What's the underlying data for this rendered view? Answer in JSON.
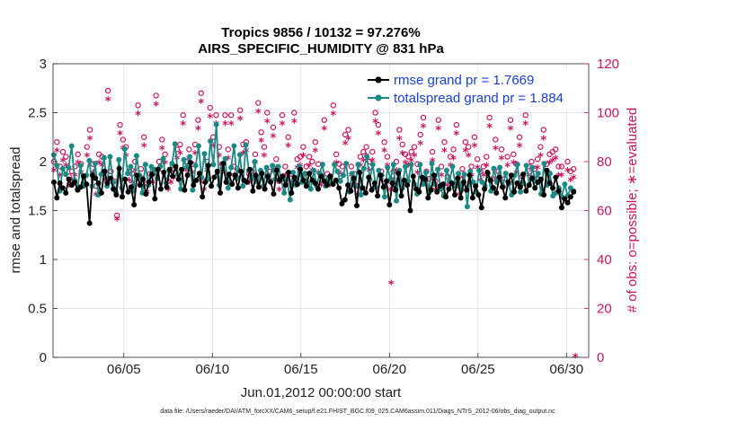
{
  "chart_data": {
    "type": "line",
    "title_line1": "Tropics 9856 / 10132 = 97.276%",
    "title_line2": "AIRS_SPECIFIC_HUMIDITY @ 831 hPa",
    "ylabel_left": "rmse and totalspread",
    "ylabel_right": "# of obs: o=possible; ∗=evaluated",
    "xlabel": "Jun.01,2012 00:00:00 start",
    "footer": "data file: /Users/raeder/DAI/ATM_forcXX/CAM6_setup/f.e21.FHIST_BGC.f09_025.CAM6assim.011/Diags_NTrS_2012-06/obs_diag_output.nc",
    "x_range_days": [
      1,
      30.5
    ],
    "ylim_left": [
      0,
      3
    ],
    "ylim_right": [
      0,
      120
    ],
    "yticks_left": [
      "0",
      "0.5",
      "1",
      "1.5",
      "2",
      "2.5",
      "3"
    ],
    "yticks_right": [
      "0",
      "20",
      "40",
      "60",
      "80",
      "100",
      "120"
    ],
    "xticks": [
      {
        "day": 5,
        "label": "06/05"
      },
      {
        "day": 10,
        "label": "06/10"
      },
      {
        "day": 15,
        "label": "06/15"
      },
      {
        "day": 20,
        "label": "06/20"
      },
      {
        "day": 25,
        "label": "06/25"
      },
      {
        "day": 30,
        "label": "06/30"
      }
    ],
    "grid": true,
    "legend_position": "top-right",
    "series": [
      {
        "name": "rmse grand pr = 1.7669",
        "axis": "left",
        "color": "#000000",
        "marker": "dot",
        "values": [
          1.79,
          1.63,
          1.78,
          1.73,
          1.68,
          1.82,
          1.76,
          1.79,
          1.71,
          1.74,
          1.85,
          1.77,
          1.37,
          1.86,
          1.83,
          1.78,
          1.68,
          1.9,
          1.78,
          1.83,
          1.72,
          1.66,
          1.93,
          1.64,
          1.82,
          1.69,
          1.74,
          1.56,
          1.86,
          1.76,
          1.82,
          1.67,
          1.79,
          1.87,
          1.62,
          1.92,
          1.72,
          1.89,
          1.74,
          1.92,
          1.85,
          1.95,
          1.82,
          1.92,
          1.71,
          1.86,
          1.99,
          1.76,
          1.81,
          1.88,
          1.64,
          1.79,
          1.96,
          1.75,
          1.84,
          1.9,
          1.68,
          1.98,
          1.79,
          1.87,
          1.77,
          1.86,
          1.73,
          1.9,
          1.81,
          1.79,
          1.92,
          1.7,
          1.86,
          1.74,
          1.88,
          1.72,
          1.85,
          1.79,
          1.67,
          1.91,
          1.81,
          1.85,
          1.76,
          1.89,
          1.68,
          1.84,
          1.77,
          1.92,
          1.81,
          1.75,
          1.88,
          1.81,
          1.78,
          1.72,
          1.85,
          1.8,
          1.76,
          1.85,
          1.77,
          1.81,
          1.73,
          1.57,
          1.61,
          1.76,
          1.7,
          1.83,
          1.55,
          1.89,
          1.73,
          1.68,
          1.84,
          1.71,
          1.78,
          1.65,
          1.86,
          1.74,
          1.8,
          1.56,
          1.78,
          1.71,
          1.88,
          1.65,
          1.81,
          1.76,
          1.5,
          1.85,
          1.72,
          1.69,
          1.84,
          1.82,
          1.63,
          1.71,
          1.86,
          1.69,
          1.75,
          1.77,
          1.64,
          1.72,
          1.78,
          1.66,
          1.83,
          1.63,
          1.79,
          1.71,
          1.86,
          1.63,
          1.75,
          1.66,
          1.53,
          1.72,
          1.89,
          1.81,
          1.73,
          1.68,
          1.84,
          1.74,
          1.63,
          1.79,
          1.86,
          1.69,
          1.78,
          1.74,
          1.87,
          1.7,
          1.76,
          1.83,
          1.73,
          1.79,
          1.82,
          1.66,
          1.91,
          1.78,
          1.73,
          1.84,
          1.7,
          1.53,
          1.62,
          1.58,
          1.64,
          1.69
        ]
      },
      {
        "name": "totalspread grand pr = 1.884",
        "axis": "left",
        "color": "#1b8a84",
        "marker": "dot",
        "values": [
          2.07,
          1.96,
          1.7,
          1.93,
          1.87,
          1.94,
          2.16,
          1.81,
          1.72,
          1.96,
          1.75,
          1.86,
          2.01,
          1.75,
          1.98,
          1.66,
          1.87,
          2.04,
          1.75,
          2.05,
          1.79,
          1.69,
          2.02,
          1.73,
          2.13,
          1.88,
          1.95,
          1.7,
          2.06,
          1.86,
          1.68,
          1.97,
          1.76,
          1.95,
          1.92,
          1.83,
          1.95,
          2.03,
          1.78,
          1.91,
          1.98,
          2.18,
          1.87,
          1.72,
          2.02,
          1.94,
          2.05,
          1.71,
          1.96,
          2.16,
          1.84,
          2.08,
          1.82,
          2.21,
          1.97,
          2.38,
          1.76,
          1.93,
          2.03,
          1.73,
          1.94,
          2.16,
          1.83,
          2.07,
          1.75,
          2.17,
          1.91,
          1.83,
          2.0,
          1.79,
          1.91,
          1.75,
          1.94,
          1.8,
          1.96,
          1.82,
          1.95,
          1.82,
          1.68,
          1.82,
          1.61,
          1.89,
          1.76,
          1.95,
          1.79,
          1.88,
          1.78,
          1.72,
          1.91,
          1.75,
          1.88,
          1.97,
          1.75,
          1.83,
          1.78,
          1.97,
          1.9,
          1.8,
          1.86,
          1.98,
          1.69,
          1.88,
          1.75,
          1.97,
          1.66,
          1.93,
          2.05,
          1.82,
          1.97,
          1.74,
          1.91,
          1.86,
          1.64,
          1.94,
          1.82,
          1.97,
          1.6,
          1.91,
          1.73,
          1.95,
          1.8,
          1.97,
          1.77,
          1.67,
          1.97,
          1.77,
          1.89,
          1.68,
          1.98,
          1.77,
          1.92,
          1.72,
          1.65,
          1.91,
          1.8,
          1.95,
          1.75,
          1.88,
          1.71,
          1.87,
          1.54,
          1.9,
          1.79,
          1.69,
          1.91,
          1.79,
          1.75,
          1.88,
          1.7,
          1.93,
          1.79,
          1.94,
          1.74,
          1.88,
          1.77,
          1.66,
          1.86,
          1.97,
          1.69,
          1.78,
          1.96,
          1.76,
          1.94,
          1.8,
          1.88,
          1.67,
          1.98,
          1.76,
          1.88,
          1.65,
          1.68,
          1.73,
          1.64,
          1.77,
          1.65,
          1.73,
          1.7
        ]
      },
      {
        "name": "possible",
        "axis": "right",
        "color": "#cc1460",
        "marker": "o",
        "values": [
          80,
          88,
          78,
          84,
          82,
          74,
          76,
          78,
          83,
          79,
          74,
          86,
          93,
          79,
          70,
          83,
          82,
          76,
          109,
          76,
          72,
          58,
          95,
          89,
          86,
          76,
          75,
          80,
          103,
          77,
          90,
          71,
          75,
          75,
          107,
          80,
          89,
          83,
          72,
          75,
          77,
          85,
          87,
          99,
          80,
          85,
          79,
          87,
          97,
          108,
          72,
          80,
          102,
          90,
          99,
          86,
          79,
          99,
          85,
          99,
          78,
          77,
          101,
          87,
          88,
          75,
          76,
          83,
          104,
          92,
          86,
          100,
          76,
          94,
          81,
          72,
          99,
          78,
          90,
          75,
          100,
          81,
          82,
          86,
          78,
          82,
          80,
          88,
          79,
          74,
          97,
          75,
          74,
          103,
          83,
          79,
          78,
          91,
          93,
          78,
          75,
          70,
          82,
          84,
          86,
          80,
          84,
          100,
          95,
          76,
          88,
          82,
          72,
          76,
          80,
          93,
          87,
          83,
          82,
          84,
          86,
          79,
          91,
          98,
          76,
          73,
          84,
          72,
          97,
          78,
          88,
          74,
          82,
          85,
          95,
          70,
          77,
          88,
          86,
          78,
          90,
          81,
          76,
          78,
          82,
          98,
          73,
          89,
          76,
          85,
          73,
          82,
          97,
          83,
          79,
          90,
          74,
          99,
          78,
          80,
          77,
          81,
          86,
          93,
          79,
          83,
          84,
          85,
          78,
          78,
          114,
          80,
          76,
          77
        ]
      },
      {
        "name": "evaluated",
        "axis": "right",
        "color": "#cc1460",
        "marker": "*",
        "values": [
          76,
          84,
          74,
          80,
          78,
          70,
          72,
          74,
          79,
          75,
          70,
          82,
          89,
          75,
          66,
          79,
          78,
          72,
          105,
          72,
          68,
          56,
          91,
          85,
          82,
          72,
          71,
          76,
          99,
          73,
          86,
          67,
          71,
          71,
          103,
          76,
          85,
          79,
          68,
          71,
          73,
          81,
          83,
          95,
          76,
          81,
          75,
          83,
          93,
          104,
          68,
          76,
          98,
          86,
          95,
          82,
          75,
          95,
          81,
          95,
          74,
          73,
          97,
          83,
          84,
          71,
          72,
          79,
          100,
          88,
          82,
          96,
          72,
          90,
          77,
          68,
          95,
          74,
          86,
          71,
          96,
          77,
          78,
          82,
          74,
          78,
          76,
          84,
          75,
          70,
          93,
          71,
          70,
          99,
          79,
          75,
          74,
          87,
          89,
          74,
          71,
          66,
          78,
          80,
          82,
          76,
          80,
          96,
          91,
          72,
          84,
          78,
          68,
          72,
          76,
          89,
          83,
          79,
          78,
          80,
          82,
          75,
          87,
          94,
          72,
          69,
          80,
          68,
          93,
          74,
          84,
          70,
          78,
          81,
          91,
          66,
          73,
          84,
          82,
          74,
          86,
          77,
          72,
          74,
          78,
          94,
          69,
          85,
          72,
          81,
          69,
          78,
          93,
          79,
          75,
          86,
          70,
          95,
          74,
          76,
          73,
          77,
          82,
          89,
          75,
          79,
          80,
          81,
          74,
          74,
          110,
          76,
          72,
          73
        ]
      }
    ],
    "outliers_evaluated": [
      {
        "day": 20.1,
        "value": 30
      },
      {
        "day": 30.5,
        "value": 0
      }
    ]
  }
}
